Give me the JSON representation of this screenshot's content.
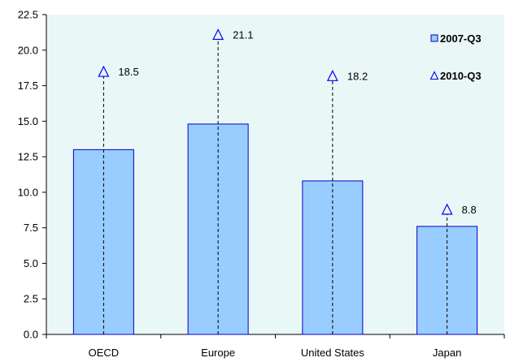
{
  "chart_data": {
    "type": "bar",
    "categories": [
      "OECD",
      "Europe",
      "United States",
      "Japan"
    ],
    "series": [
      {
        "name": "2007-Q3",
        "kind": "bar",
        "values": [
          13.0,
          14.8,
          10.8,
          7.6
        ]
      },
      {
        "name": "2010-Q3",
        "kind": "marker",
        "marker": "open-triangle",
        "values": [
          18.5,
          21.1,
          18.2,
          8.8
        ]
      }
    ],
    "data_labels": [
      "18.5",
      "21.1",
      "18.2",
      "8.8"
    ],
    "ylim": [
      0,
      22.5
    ],
    "yticks": [
      "0.0",
      "2.5",
      "5.0",
      "7.5",
      "10.0",
      "12.5",
      "15.0",
      "17.5",
      "20.0",
      "22.5"
    ],
    "title": "",
    "xlabel": "",
    "ylabel": "",
    "grid": false,
    "legend": {
      "position": "top-right",
      "entries": [
        "2007-Q3",
        "2010-Q3"
      ]
    },
    "colors": {
      "plot_background": "#eaf7f7",
      "bar_fill": "#99ccff",
      "bar_stroke": "#0000cc",
      "marker_stroke": "#0000ff",
      "connector": "#000000"
    }
  }
}
